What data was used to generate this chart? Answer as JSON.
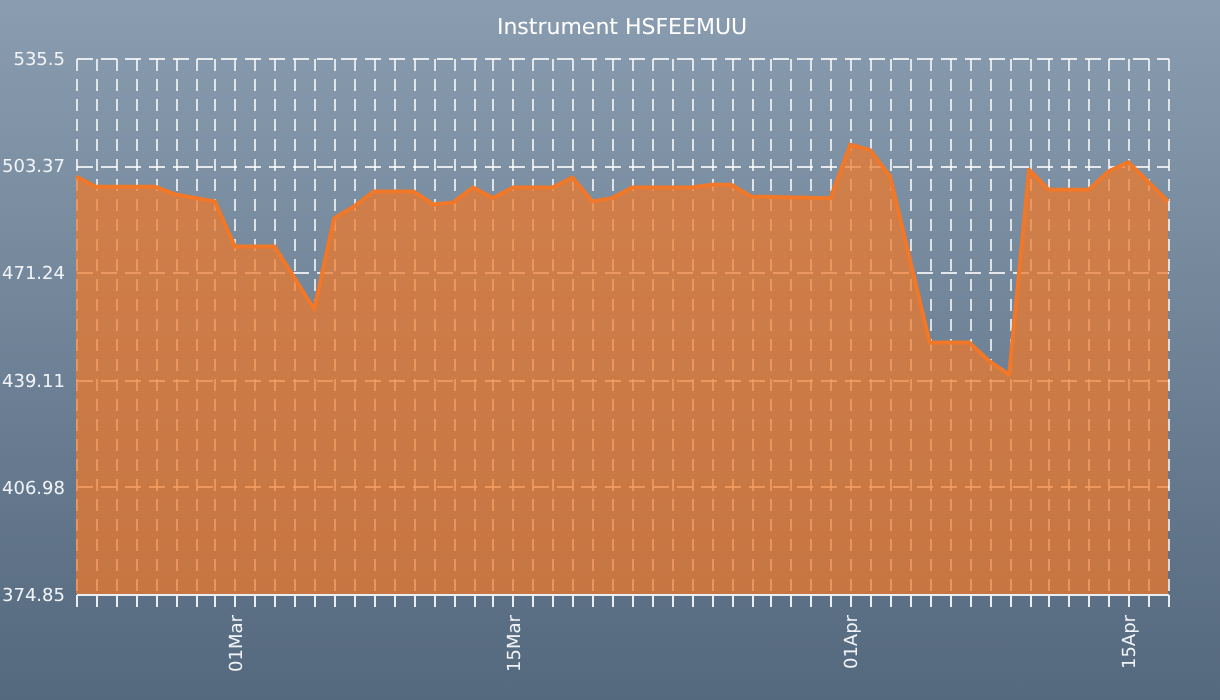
{
  "chart_data": {
    "type": "area",
    "title": "Instrument HSFEEMUU",
    "x": [
      "--02-21",
      "--02-22",
      "--02-25",
      "--02-26",
      "--02-28",
      "--03-01",
      "--03-03",
      "--03-05",
      "--03-06",
      "--03-07",
      "--03-08",
      "--03-10",
      "--03-11",
      "--03-12",
      "--03-13",
      "--03-14",
      "--03-15",
      "--03-17",
      "--03-18",
      "--03-19",
      "--03-20",
      "--03-21",
      "--03-24",
      "--03-25",
      "--03-26",
      "--03-27",
      "--03-31",
      "--04-01",
      "--04-02",
      "--04-03",
      "--04-05",
      "--04-07",
      "--04-08",
      "--04-09",
      "--04-10",
      "--04-11",
      "--04-13",
      "--04-14",
      "--04-15",
      "--04-17"
    ],
    "series": [
      {
        "color": "#f07828",
        "values": [
          500.0,
          496.9,
          496.9,
          494.6,
          492.5,
          479.0,
          479.0,
          460.2,
          487.5,
          491.0,
          495.5,
          495.5,
          491.6,
          492.2,
          496.7,
          493.5,
          496.7,
          496.7,
          499.7,
          492.5,
          493.5,
          496.7,
          496.7,
          497.5,
          497.5,
          494.0,
          493.5,
          509.5,
          507.9,
          500.0,
          450.2,
          450.2,
          444.6,
          440.6,
          502.0,
          496.0,
          496.0,
          501.5,
          504.3,
          492.5
        ]
      }
    ],
    "xlim": [
      "--02-21",
      "--04-17"
    ],
    "xticks": [
      {
        "value": "--02-21",
        "label": null
      },
      {
        "value": "--02-22",
        "label": null
      },
      {
        "value": "--02-23",
        "label": null
      },
      {
        "value": "--02-24",
        "label": null
      },
      {
        "value": "--02-25",
        "label": null
      },
      {
        "value": "--02-26",
        "label": null
      },
      {
        "value": "--02-27",
        "label": null
      },
      {
        "value": "--02-28",
        "label": null
      },
      {
        "value": "--03-01",
        "label": "01Mar"
      },
      {
        "value": "--03-02",
        "label": null
      },
      {
        "value": "--03-03",
        "label": null
      },
      {
        "value": "--03-04",
        "label": null
      },
      {
        "value": "--03-05",
        "label": null
      },
      {
        "value": "--03-06",
        "label": null
      },
      {
        "value": "--03-07",
        "label": null
      },
      {
        "value": "--03-08",
        "label": null
      },
      {
        "value": "--03-09",
        "label": null
      },
      {
        "value": "--03-10",
        "label": null
      },
      {
        "value": "--03-11",
        "label": null
      },
      {
        "value": "--03-12",
        "label": null
      },
      {
        "value": "--03-13",
        "label": null
      },
      {
        "value": "--03-14",
        "label": null
      },
      {
        "value": "--03-15",
        "label": "15Mar"
      },
      {
        "value": "--03-16",
        "label": null
      },
      {
        "value": "--03-17",
        "label": null
      },
      {
        "value": "--03-18",
        "label": null
      },
      {
        "value": "--03-19",
        "label": null
      },
      {
        "value": "--03-20",
        "label": null
      },
      {
        "value": "--03-21",
        "label": null
      },
      {
        "value": "--03-22",
        "label": null
      },
      {
        "value": "--03-23",
        "label": null
      },
      {
        "value": "--03-24",
        "label": null
      },
      {
        "value": "--03-25",
        "label": null
      },
      {
        "value": "--03-26",
        "label": null
      },
      {
        "value": "--03-27",
        "label": null
      },
      {
        "value": "--03-28",
        "label": null
      },
      {
        "value": "--03-29",
        "label": null
      },
      {
        "value": "--03-30",
        "label": null
      },
      {
        "value": "--03-31",
        "label": null
      },
      {
        "value": "--04-01",
        "label": "01Apr"
      },
      {
        "value": "--04-02",
        "label": null
      },
      {
        "value": "--04-03",
        "label": null
      },
      {
        "value": "--04-04",
        "label": null
      },
      {
        "value": "--04-05",
        "label": null
      },
      {
        "value": "--04-06",
        "label": null
      },
      {
        "value": "--04-07",
        "label": null
      },
      {
        "value": "--04-08",
        "label": null
      },
      {
        "value": "--04-09",
        "label": null
      },
      {
        "value": "--04-10",
        "label": null
      },
      {
        "value": "--04-11",
        "label": null
      },
      {
        "value": "--04-12",
        "label": null
      },
      {
        "value": "--04-13",
        "label": null
      },
      {
        "value": "--04-14",
        "label": null
      },
      {
        "value": "--04-15",
        "label": "15Apr"
      },
      {
        "value": "--04-16",
        "label": null
      },
      {
        "value": "--04-17",
        "label": null
      }
    ],
    "ylim": [
      374.85,
      535.5
    ],
    "yticks": [
      374.85,
      406.98,
      439.11,
      471.24,
      503.37,
      535.5
    ],
    "grid": true
  }
}
